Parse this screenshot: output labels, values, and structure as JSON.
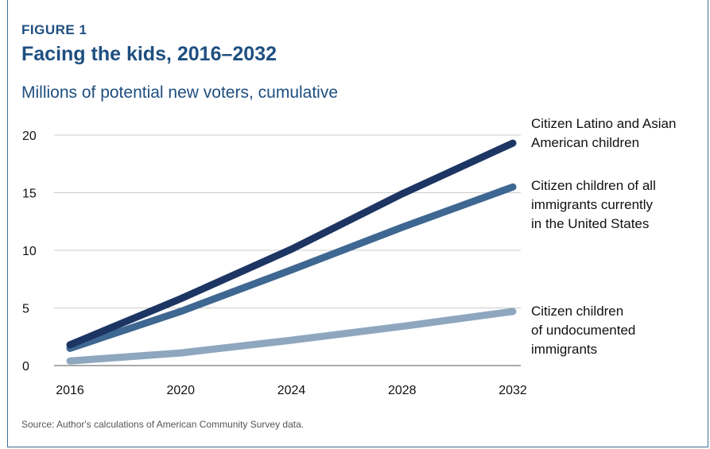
{
  "figure_label": "FIGURE 1",
  "title": "Facing the kids, 2016–2032",
  "subtitle": "Millions of potential new voters, cumulative",
  "source": "Source: Author's calculations of American Community Survey data.",
  "chart_data": {
    "type": "line",
    "x": [
      2016,
      2020,
      2024,
      2028,
      2032
    ],
    "xticks": [
      "2016",
      "2020",
      "2024",
      "2028",
      "2032"
    ],
    "xlim": [
      2016,
      2032
    ],
    "ylim": [
      0,
      20
    ],
    "yticks": [
      "0",
      "5",
      "10",
      "15",
      "20"
    ],
    "grid": true,
    "legend_placement": "right, labels next to line ends",
    "series": [
      {
        "name": "Citizen Latino and Asian American children",
        "label_lines": [
          "Citizen Latino and Asian",
          "American children"
        ],
        "values": [
          1.8,
          5.8,
          10.1,
          14.9,
          19.3
        ],
        "color": "#1c3563"
      },
      {
        "name": "Citizen children of all immigrants currently in the United States",
        "label_lines": [
          "Citizen children of all",
          "immigrants currently",
          "in the United States"
        ],
        "values": [
          1.5,
          4.7,
          8.3,
          12.0,
          15.5
        ],
        "color": "#3e6791"
      },
      {
        "name": "Citizen children of undocumented immigrants",
        "label_lines": [
          "Citizen children",
          "of undocumented",
          "immigrants"
        ],
        "values": [
          0.4,
          1.1,
          2.2,
          3.4,
          4.7
        ],
        "color": "#8ea7bf"
      }
    ]
  }
}
